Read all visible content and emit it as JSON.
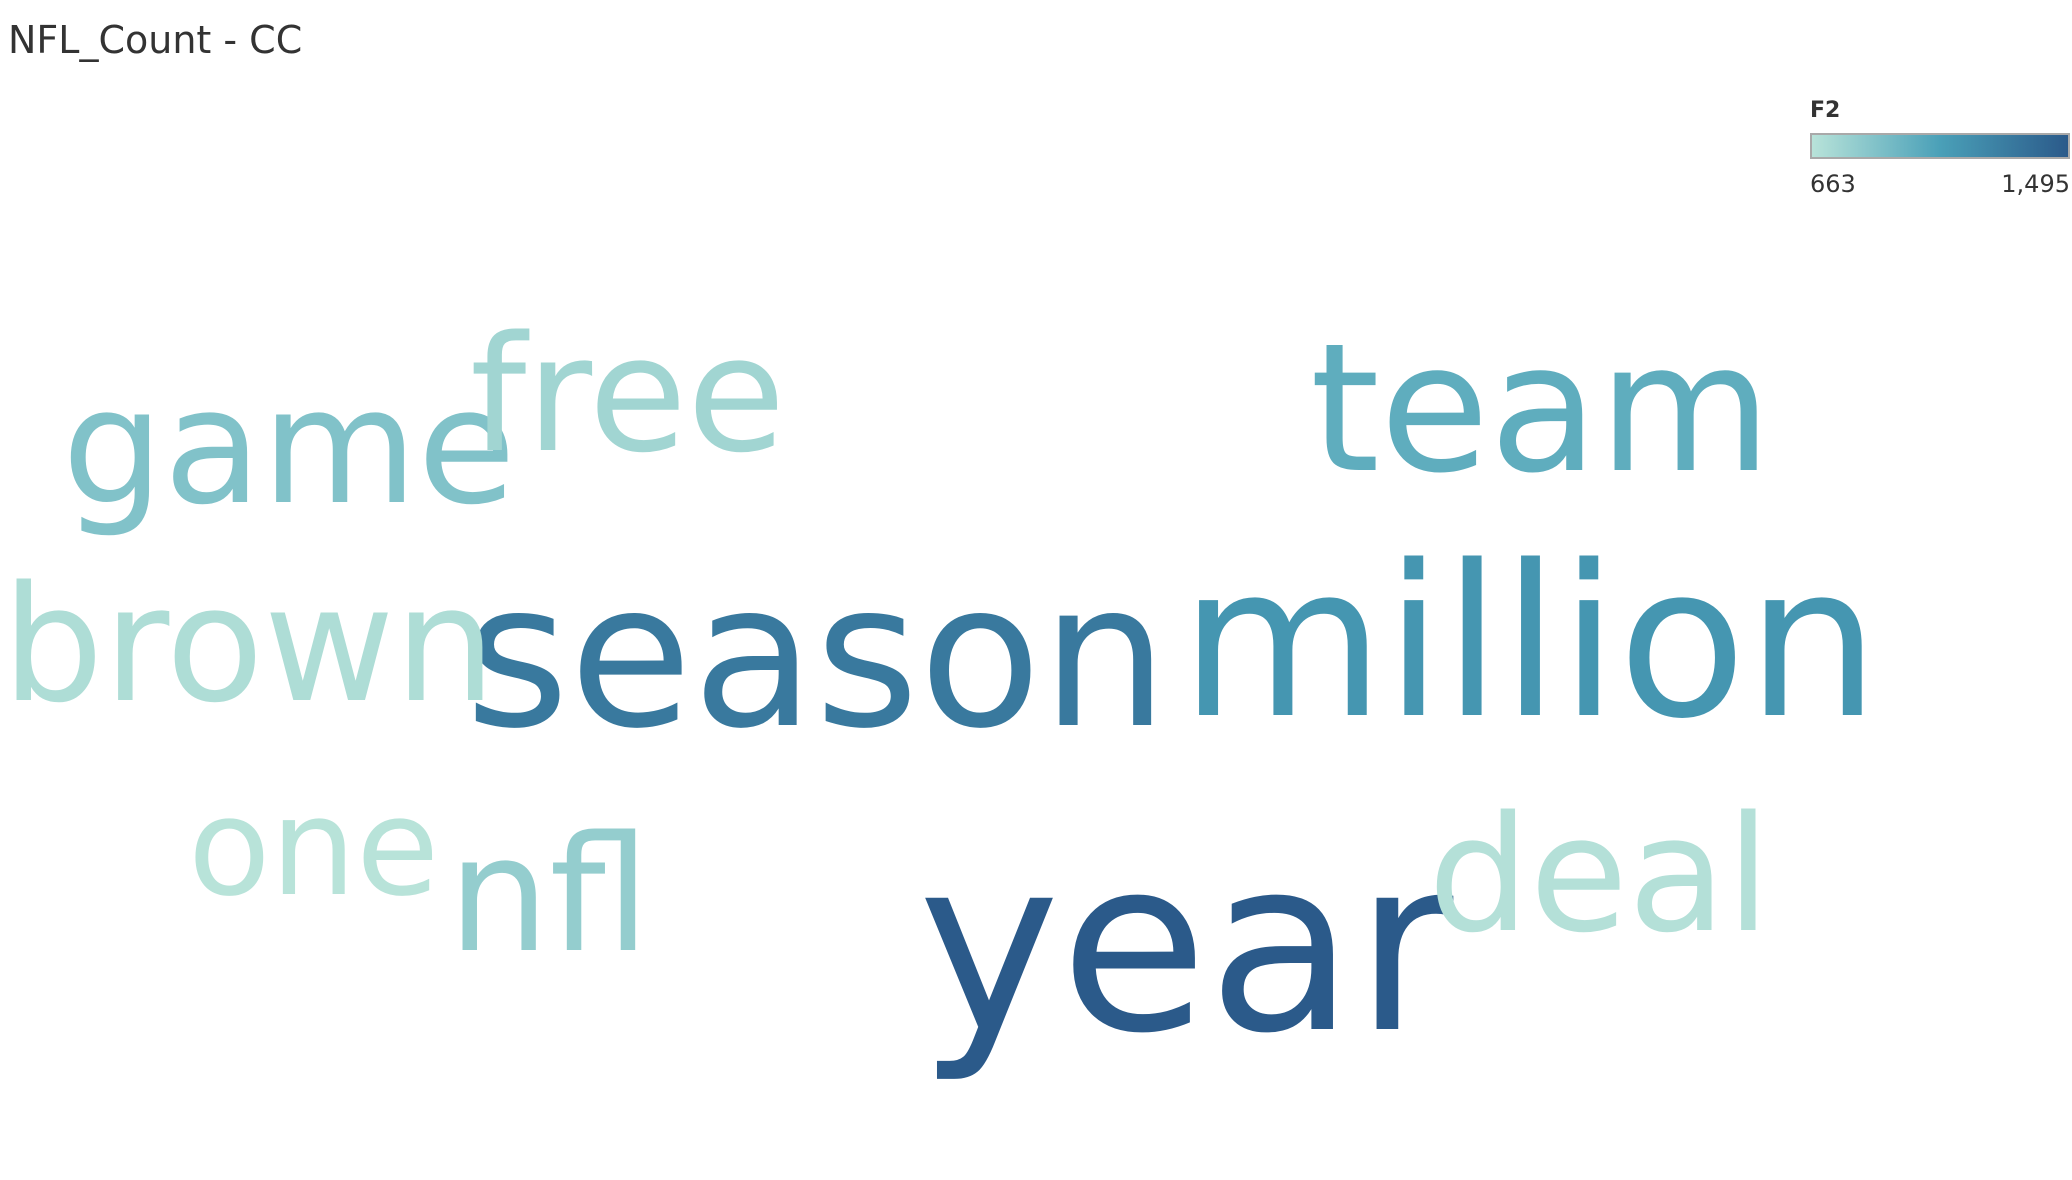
{
  "title": "NFL_Count - CC",
  "legend": {
    "title": "F2",
    "min_label": "663",
    "max_label": "1,495",
    "min": 663,
    "max": 1495,
    "color_low": "#b8e3d9",
    "color_mid": "#4aa0b8",
    "color_high": "#2b5a8a"
  },
  "chart_data": {
    "type": "wordcloud",
    "title": "NFL_Count - CC",
    "color_legend": "F2",
    "range": [
      663,
      1495
    ],
    "words": [
      {
        "text": "year",
        "value": 1495
      },
      {
        "text": "season",
        "value": 1310
      },
      {
        "text": "million",
        "value": 1140
      },
      {
        "text": "team",
        "value": 1000
      },
      {
        "text": "game",
        "value": 870
      },
      {
        "text": "nfl",
        "value": 800
      },
      {
        "text": "free",
        "value": 750
      },
      {
        "text": "brown",
        "value": 700
      },
      {
        "text": "deal",
        "value": 680
      },
      {
        "text": "one",
        "value": 663
      }
    ]
  }
}
